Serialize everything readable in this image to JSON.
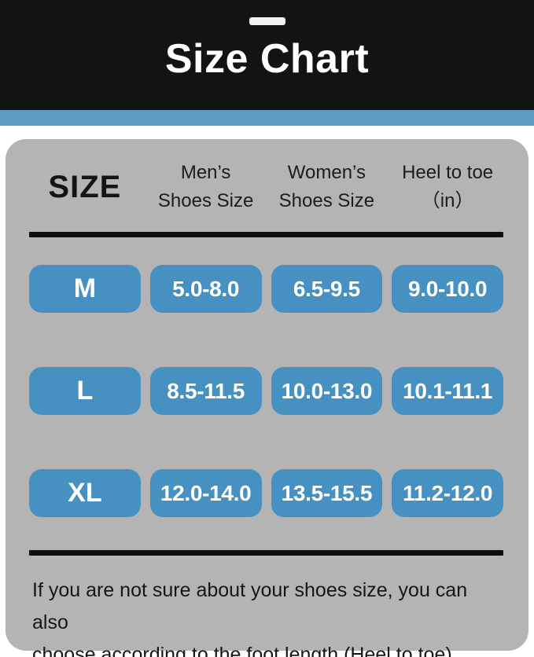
{
  "banner": {
    "title": "Size Chart"
  },
  "colors": {
    "banner_bg": "#131313",
    "accent_bar": "#5d9ec7",
    "card_bg": "#b4b4b4",
    "pill_blue": "#4691c1",
    "pill_text": "#ffffff",
    "rule_black": "#0e0e0e"
  },
  "table": {
    "size_header": "SIZE",
    "col_headers": [
      {
        "line1": "Men’s",
        "line2": "Shoes Size"
      },
      {
        "line1": "Women’s",
        "line2": "Shoes Size"
      },
      {
        "line1": "Heel to toe",
        "line2": "（in）"
      }
    ],
    "rows": [
      {
        "size": "M",
        "mens": "5.0-8.0",
        "womens": "6.5-9.5",
        "heel": "9.0-10.0"
      },
      {
        "size": "L",
        "mens": "8.5-11.5",
        "womens": "10.0-13.0",
        "heel": "10.1-11.1"
      },
      {
        "size": "XL",
        "mens": "12.0-14.0",
        "womens": "13.5-15.5",
        "heel": "11.2-12.0"
      }
    ]
  },
  "footer": {
    "line1": "If you are not sure about your shoes size, you can also",
    "line2": "choose according to the foot length (Heel to toe) ."
  },
  "chart_data": {
    "type": "table",
    "title": "Size Chart",
    "columns": [
      "SIZE",
      "Men’s Shoes Size",
      "Women’s Shoes Size",
      "Heel to toe (in)"
    ],
    "rows": [
      [
        "M",
        "5.0-8.0",
        "6.5-9.5",
        "9.0-10.0"
      ],
      [
        "L",
        "8.5-11.5",
        "10.0-13.0",
        "10.1-11.1"
      ],
      [
        "XL",
        "12.0-14.0",
        "13.5-15.5",
        "11.2-12.0"
      ]
    ],
    "note": "If you are not sure about your shoes size, you can also choose according to the foot length (Heel to toe)."
  }
}
